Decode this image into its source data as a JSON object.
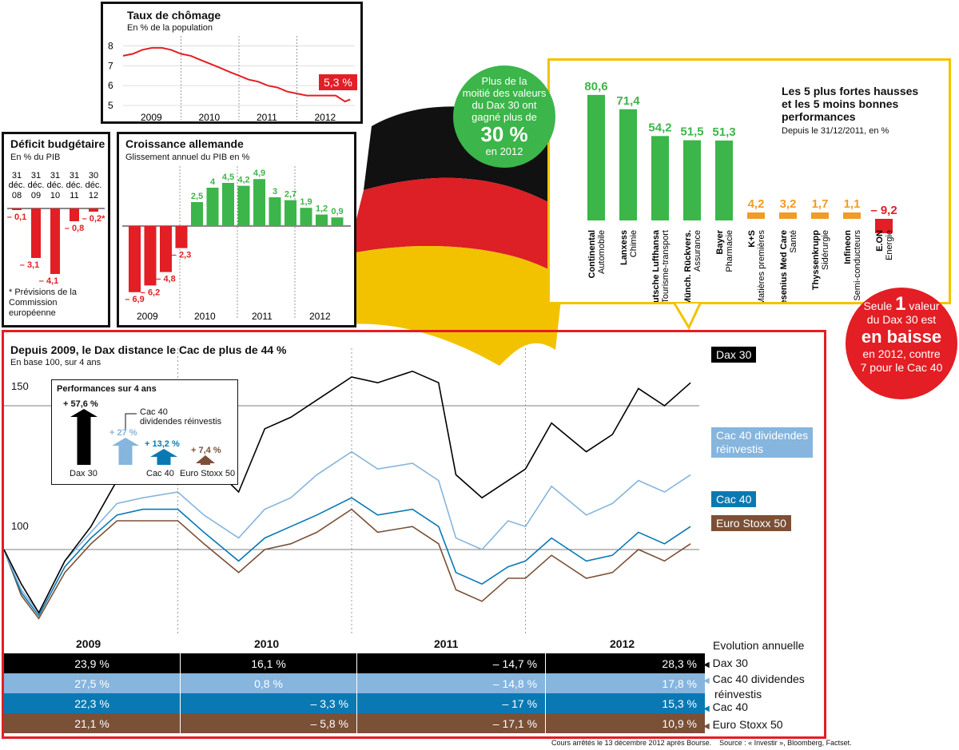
{
  "colors": {
    "red": "#e31e24",
    "green": "#3cb54a",
    "orange": "#f29b25",
    "yellow": "#f2c300",
    "dax": "#000000",
    "cac_div": "#86b5dd",
    "cac": "#0a79b3",
    "stoxx": "#7a5037",
    "flag_black": "#111111",
    "flag_red": "#dd1f26",
    "flag_gold": "#f2c200"
  },
  "unemployment": {
    "title": "Taux de chômage",
    "subtitle": "En % de la population",
    "callout": "5,3 %",
    "chart_data": {
      "type": "line",
      "title": "Taux de chômage",
      "ylabel": "En % de la population",
      "y_ticks": [
        "8",
        "7",
        "6",
        "5"
      ],
      "ylim": [
        4.6,
        8.5
      ],
      "x_labels": [
        "2009",
        "2010",
        "2011",
        "2012"
      ],
      "x": [
        2009.0,
        2009.17,
        2009.33,
        2009.5,
        2009.67,
        2009.83,
        2010.0,
        2010.17,
        2010.33,
        2010.5,
        2010.67,
        2010.83,
        2011.0,
        2011.17,
        2011.33,
        2011.5,
        2011.67,
        2011.83,
        2012.0,
        2012.17,
        2012.33,
        2012.5,
        2012.67,
        2012.83,
        2012.92
      ],
      "values": [
        7.5,
        7.6,
        7.8,
        7.9,
        7.9,
        7.8,
        7.6,
        7.5,
        7.3,
        7.1,
        6.9,
        6.7,
        6.5,
        6.3,
        6.2,
        6.0,
        5.9,
        5.7,
        5.6,
        5.5,
        5.5,
        5.5,
        5.5,
        5.2,
        5.3
      ]
    }
  },
  "deficit": {
    "title": "Déficit budgétaire",
    "subtitle": "En % du PIB",
    "note": "* Prévisions de la Commission européenne",
    "chart_data": {
      "type": "bar",
      "title": "Déficit budgétaire",
      "categories": [
        "31 déc. 08",
        "31 déc. 09",
        "31 déc. 10",
        "31 déc. 11",
        "30 déc. 12"
      ],
      "values": [
        -0.1,
        -3.1,
        -4.1,
        -0.8,
        -0.2
      ],
      "value_labels": [
        "– 0,1",
        "– 3,1",
        "– 4,1",
        "– 0,8",
        "– 0,2*"
      ]
    }
  },
  "growth": {
    "title": "Croissance allemande",
    "subtitle": "Glissement annuel du PIB en %",
    "chart_data": {
      "type": "bar",
      "title": "Croissance allemande",
      "x_labels": [
        "2009",
        "2010",
        "2011",
        "2012"
      ],
      "values": [
        -6.9,
        -6.2,
        -4.8,
        -2.3,
        2.5,
        4,
        4.5,
        4.2,
        4.9,
        3,
        2.7,
        1.9,
        1.2,
        0.9
      ],
      "value_labels": [
        "– 6,9",
        "– 6,2",
        "– 4,8",
        "– 2,3",
        "2,5",
        "4",
        "4,5",
        "4,2",
        "4,9",
        "3",
        "2,7",
        "1,9",
        "1,2",
        "0,9"
      ]
    }
  },
  "bubble_green": {
    "l1": "Plus de la",
    "l2": "moitié des valeurs",
    "l3": "du Dax 30 ont",
    "l4": "gagné plus de",
    "big": "30 %",
    "l5": "en 2012"
  },
  "bubble_red": {
    "l1": "Seule",
    "num": "1",
    "l1b": "valeur",
    "l2": "du Dax 30 est",
    "big": "en baisse",
    "l3": "en 2012, contre",
    "l4": "7 pour le Cac 40"
  },
  "performers": {
    "title": "Les 5 plus fortes hausses et les 5 moins bonnes performances",
    "subtitle": "Depuis le 31/12/2011, en %",
    "chart_data": {
      "type": "bar",
      "title": "Les 5 plus fortes hausses et les 5 moins bonnes performances",
      "categories": [
        "Continental",
        "Lanxess",
        "Deutsche Lufthansa",
        "Münch. Rückvers.",
        "Bayer",
        "K+S",
        "Fresenius Med Care",
        "Thyssenkrupp",
        "Infineon",
        "E.ON"
      ],
      "sectors": [
        "Automobile",
        "Chimie",
        "Tourisme-transport",
        "Assurance",
        "Pharmacie",
        "Matières premières",
        "Santé",
        "Sidérurgie",
        "Semi-conducteurs",
        "Energie"
      ],
      "values": [
        80.6,
        71.4,
        54.2,
        51.5,
        51.3,
        4.2,
        3.2,
        1.7,
        1.1,
        -9.2
      ],
      "value_labels": [
        "80,6",
        "71,4",
        "54,2",
        "51,5",
        "51,3",
        "4,2",
        "3,2",
        "1,7",
        "1,1",
        "– 9,2"
      ]
    }
  },
  "main": {
    "title": "Depuis 2009, le Dax distance le Cac de plus de 44 %",
    "subtitle": "En base 100, sur 4 ans",
    "tick_150": "150",
    "tick_100": "100",
    "years": [
      "2009",
      "2010",
      "2011",
      "2012"
    ],
    "evolution_label": "Evolution annuelle",
    "legend_dax": "Dax 30",
    "legend_cacdiv_1": "Cac 40 dividendes",
    "legend_cacdiv_2": "réinvestis",
    "legend_cac": "Cac 40",
    "legend_stoxx": "Euro Stoxx 50",
    "inset": {
      "title": "Performances sur 4 ans",
      "note_1": "Cac 40",
      "note_2": "dividendes réinvestis",
      "values": [
        "+ 57,6 %",
        "+ 27 %",
        "+ 13,2 %",
        "+ 7,4 %"
      ],
      "labels": [
        "Dax 30",
        "Cac 40",
        "Euro Stoxx 50"
      ]
    },
    "chart_data": {
      "type": "line",
      "title": "Depuis 2009, le Dax distance le Cac de plus de 44 %",
      "ylabel": "En base 100, sur 4 ans",
      "ylim": [
        70,
        170
      ],
      "x_labels": [
        "2009",
        "2010",
        "2011",
        "2012"
      ],
      "x": [
        2009.0,
        2009.1,
        2009.2,
        2009.35,
        2009.5,
        2009.65,
        2009.8,
        2010.0,
        2010.15,
        2010.35,
        2010.5,
        2010.65,
        2010.8,
        2011.0,
        2011.15,
        2011.35,
        2011.5,
        2011.6,
        2011.75,
        2011.9,
        2012.0,
        2012.15,
        2012.35,
        2012.5,
        2012.65,
        2012.8,
        2012.95
      ],
      "series": [
        {
          "name": "Dax 30",
          "values": [
            100,
            88,
            78,
            96,
            108,
            124,
            130,
            138,
            132,
            120,
            142,
            146,
            152,
            160,
            158,
            162,
            158,
            126,
            118,
            124,
            128,
            144,
            134,
            140,
            156,
            150,
            158
          ]
        },
        {
          "name": "Cac 40 dividendes réinvestis",
          "values": [
            100,
            86,
            78,
            96,
            106,
            116,
            118,
            120,
            112,
            104,
            114,
            118,
            126,
            134,
            128,
            130,
            124,
            104,
            100,
            110,
            108,
            122,
            112,
            116,
            124,
            120,
            126
          ]
        },
        {
          "name": "Cac 40",
          "values": [
            100,
            85,
            77,
            94,
            104,
            112,
            114,
            114,
            106,
            96,
            104,
            108,
            112,
            118,
            112,
            114,
            108,
            92,
            88,
            94,
            96,
            104,
            96,
            98,
            106,
            102,
            108
          ]
        },
        {
          "name": "Euro Stoxx 50",
          "values": [
            100,
            84,
            76,
            92,
            102,
            110,
            110,
            110,
            102,
            92,
            100,
            102,
            106,
            114,
            106,
            108,
            102,
            86,
            82,
            90,
            90,
            98,
            90,
            92,
            100,
            96,
            102
          ]
        }
      ]
    }
  },
  "evolution_table": {
    "rows": [
      {
        "name": "Dax 30",
        "cells": [
          "23,9 %",
          "16,1 %",
          "– 14,7 %",
          "28,3 %"
        ]
      },
      {
        "name": "Cac 40 dividendes réinvestis",
        "cells": [
          "27,5 %",
          "0,8 %",
          "– 14,8 %",
          "17,8 %"
        ]
      },
      {
        "name": "Cac 40",
        "cells": [
          "22,3 %",
          "– 3,3 %",
          "– 17 %",
          "15,3 %"
        ]
      },
      {
        "name": "Euro Stoxx 50",
        "cells": [
          "21,1 %",
          "– 5,8 %",
          "– 17,1 %",
          "10,9 %"
        ]
      }
    ],
    "row_labels": [
      "Dax 30",
      "Cac 40 dividendes",
      "réinvestis",
      "Cac 40",
      "Euro Stoxx 50"
    ]
  },
  "footer": "Cours arrêtés le 13 décembre 2012 après Bourse.    Source : « Investir », Bloomberg, Factset."
}
